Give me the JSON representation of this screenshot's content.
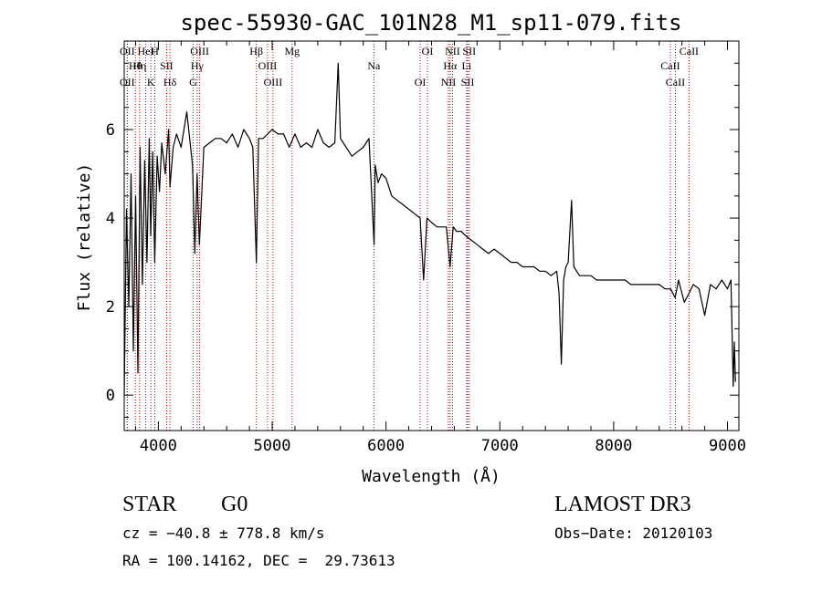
{
  "chart_data": {
    "type": "line",
    "title": "spec-55930-GAC_101N28_M1_sp11-079.fits",
    "xlabel": "Wavelength (Å)",
    "ylabel": "Flux (relative)",
    "xlim": [
      3700,
      9100
    ],
    "ylim": [
      -0.8,
      8.0
    ],
    "x_ticks": [
      4000,
      5000,
      6000,
      7000,
      8000,
      9000
    ],
    "y_ticks": [
      0,
      2,
      4,
      6
    ],
    "series": [
      {
        "name": "flux",
        "color": "#000000",
        "x": [
          3700,
          3720,
          3740,
          3760,
          3780,
          3800,
          3820,
          3840,
          3860,
          3880,
          3900,
          3920,
          3933,
          3950,
          3968,
          3990,
          4010,
          4030,
          4060,
          4090,
          4102,
          4130,
          4160,
          4200,
          4250,
          4300,
          4320,
          4340,
          4360,
          4400,
          4450,
          4500,
          4550,
          4600,
          4650,
          4700,
          4750,
          4800,
          4830,
          4861,
          4880,
          4920,
          4960,
          5000,
          5050,
          5100,
          5150,
          5200,
          5250,
          5300,
          5350,
          5400,
          5450,
          5500,
          5550,
          5580,
          5600,
          5650,
          5700,
          5750,
          5800,
          5850,
          5895,
          5905,
          5930,
          5960,
          6000,
          6050,
          6100,
          6150,
          6200,
          6250,
          6300,
          6330,
          6360,
          6400,
          6450,
          6500,
          6530,
          6563,
          6590,
          6620,
          6660,
          6700,
          6750,
          6800,
          6850,
          6900,
          6950,
          7000,
          7050,
          7100,
          7150,
          7200,
          7250,
          7300,
          7350,
          7400,
          7450,
          7500,
          7520,
          7540,
          7560,
          7580,
          7600,
          7630,
          7650,
          7700,
          7750,
          7800,
          7850,
          7900,
          7950,
          8000,
          8050,
          8100,
          8150,
          8200,
          8250,
          8300,
          8350,
          8400,
          8450,
          8500,
          8540,
          8570,
          8620,
          8662,
          8700,
          8750,
          8800,
          8850,
          8900,
          8950,
          9000,
          9030,
          9050,
          9060,
          9070
        ],
        "values": [
          0.0,
          4.2,
          2.0,
          5.0,
          1.0,
          4.5,
          0.5,
          5.6,
          2.5,
          5.3,
          3.0,
          5.8,
          3.6,
          5.5,
          3.0,
          5.4,
          4.6,
          5.7,
          5.0,
          6.0,
          4.7,
          5.6,
          5.9,
          5.6,
          6.4,
          5.2,
          3.2,
          5.0,
          3.4,
          5.6,
          5.7,
          5.8,
          5.8,
          5.7,
          5.9,
          5.6,
          6.0,
          5.8,
          5.6,
          3.0,
          5.8,
          5.8,
          5.9,
          6.0,
          5.9,
          5.9,
          5.6,
          5.9,
          5.6,
          5.7,
          5.6,
          6.0,
          5.7,
          5.6,
          5.7,
          7.5,
          5.8,
          5.6,
          5.4,
          5.5,
          5.6,
          5.8,
          3.4,
          5.2,
          4.8,
          5.0,
          4.9,
          4.5,
          4.4,
          4.3,
          4.2,
          4.1,
          4.0,
          2.6,
          4.0,
          3.9,
          3.8,
          3.8,
          3.8,
          2.9,
          3.8,
          3.7,
          3.7,
          3.6,
          3.5,
          3.4,
          3.3,
          3.2,
          3.3,
          3.2,
          3.1,
          3.0,
          3.0,
          2.9,
          2.9,
          2.9,
          2.8,
          2.8,
          2.7,
          2.8,
          2.3,
          0.7,
          2.6,
          2.9,
          3.0,
          4.4,
          2.9,
          2.7,
          2.7,
          2.7,
          2.6,
          2.6,
          2.6,
          2.6,
          2.6,
          2.6,
          2.5,
          2.5,
          2.5,
          2.5,
          2.5,
          2.5,
          2.4,
          2.4,
          2.2,
          2.6,
          2.1,
          2.3,
          2.5,
          2.4,
          1.8,
          2.5,
          2.4,
          2.6,
          2.4,
          2.6,
          0.2,
          1.2,
          0.3
        ]
      }
    ],
    "lines": [
      {
        "label": "OII",
        "x": 3727
      },
      {
        "label": "Hθ",
        "x": 3798
      },
      {
        "label": "OII",
        "x": 3727
      },
      {
        "label": "HeI",
        "x": 3889
      },
      {
        "label": "Hη",
        "x": 3835
      },
      {
        "label": "K",
        "x": 3934
      },
      {
        "label": "H",
        "x": 3969
      },
      {
        "label": "SII",
        "x": 4072
      },
      {
        "label": "Hδ",
        "x": 4102
      },
      {
        "label": "OIII",
        "x": 4363
      },
      {
        "label": "Hγ",
        "x": 4341
      },
      {
        "label": "G",
        "x": 4305
      },
      {
        "label": "Hβ",
        "x": 4861
      },
      {
        "label": "OIII",
        "x": 4959
      },
      {
        "label": "OIII",
        "x": 5007
      },
      {
        "label": "Mg",
        "x": 5175
      },
      {
        "label": "Na",
        "x": 5893
      },
      {
        "label": "OI",
        "x": 6300
      },
      {
        "label": "OI",
        "x": 6364
      },
      {
        "label": "Hα",
        "x": 6563
      },
      {
        "label": "NII",
        "x": 6548
      },
      {
        "label": "NII",
        "x": 6584
      },
      {
        "label": "Li",
        "x": 6708
      },
      {
        "label": "SII",
        "x": 6717
      },
      {
        "label": "SII",
        "x": 6731
      },
      {
        "label": "CaII",
        "x": 8498
      },
      {
        "label": "CaII",
        "x": 8542
      },
      {
        "label": "CaII",
        "x": 8662
      }
    ]
  },
  "info": {
    "class": "STAR",
    "subclass": "G0",
    "survey": "LAMOST DR3",
    "cz": "cz = −40.8 ± 778.8 km/s",
    "obs_date": "Obs−Date: 20120103",
    "radec": "RA = 100.14162, DEC =  29.73613"
  }
}
